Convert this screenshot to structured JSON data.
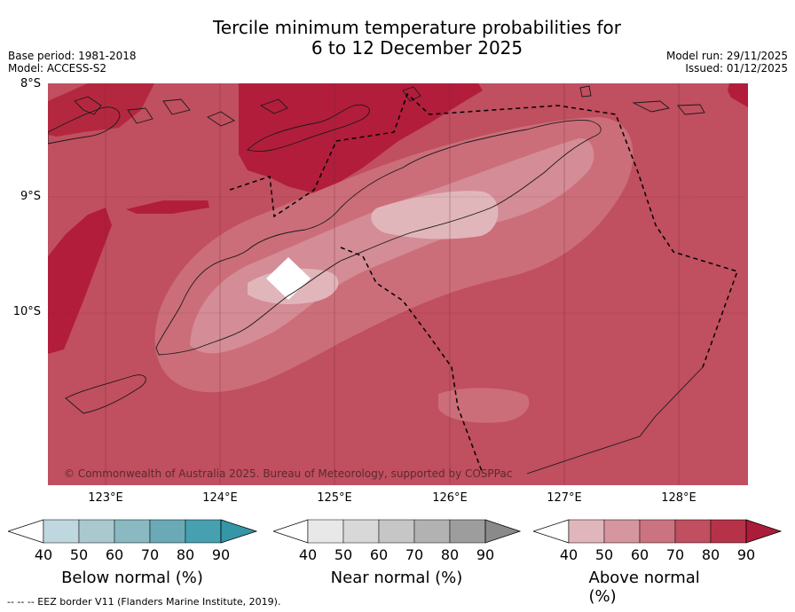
{
  "title_line1": "Tercile minimum temperature probabilities for",
  "title_line2": "6 to 12 December 2025",
  "meta_left": {
    "base_period": "Base period: 1981-2018",
    "model": "Model: ACCESS-S2"
  },
  "meta_right": {
    "model_run": "Model run: 29/11/2025",
    "issued": "Issued: 01/12/2025"
  },
  "axes": {
    "lat_labels": [
      "8°S",
      "9°S",
      "10°S"
    ],
    "lon_labels": [
      "123°E",
      "124°E",
      "125°E",
      "126°E",
      "127°E",
      "128°E"
    ]
  },
  "copyright": "© Commonwealth of Australia 2025. Bureau of Meteorology, supported by COSPPac",
  "colorbars": [
    {
      "label": "Below normal (%)",
      "ticks": [
        "40",
        "50",
        "60",
        "70",
        "80",
        "90"
      ],
      "colors": [
        "#bfd7de",
        "#a9c9cf",
        "#8bb9c2",
        "#6aa9b5",
        "#47a0b0",
        "#3496a7"
      ]
    },
    {
      "label": "Near normal (%)",
      "ticks": [
        "40",
        "50",
        "60",
        "70",
        "80",
        "90"
      ],
      "colors": [
        "#e8e8e8",
        "#d8d8d8",
        "#c6c6c6",
        "#b2b2b2",
        "#9d9d9d",
        "#8a8a8a"
      ]
    },
    {
      "label": "Above normal (%)",
      "ticks": [
        "40",
        "50",
        "60",
        "70",
        "80",
        "90"
      ],
      "colors": [
        "#e0b6bc",
        "#d696a0",
        "#cb7380",
        "#c04f60",
        "#b63248",
        "#ab1c3a"
      ]
    }
  ],
  "legend_footer": "--  --  -- EEZ border V11 (Flanders Marine Institute, 2019).",
  "colors": {
    "above_70_80": "#c04f5f",
    "above_80_90": "#b21d3c",
    "above_60_70": "#cb6e7a"
  }
}
